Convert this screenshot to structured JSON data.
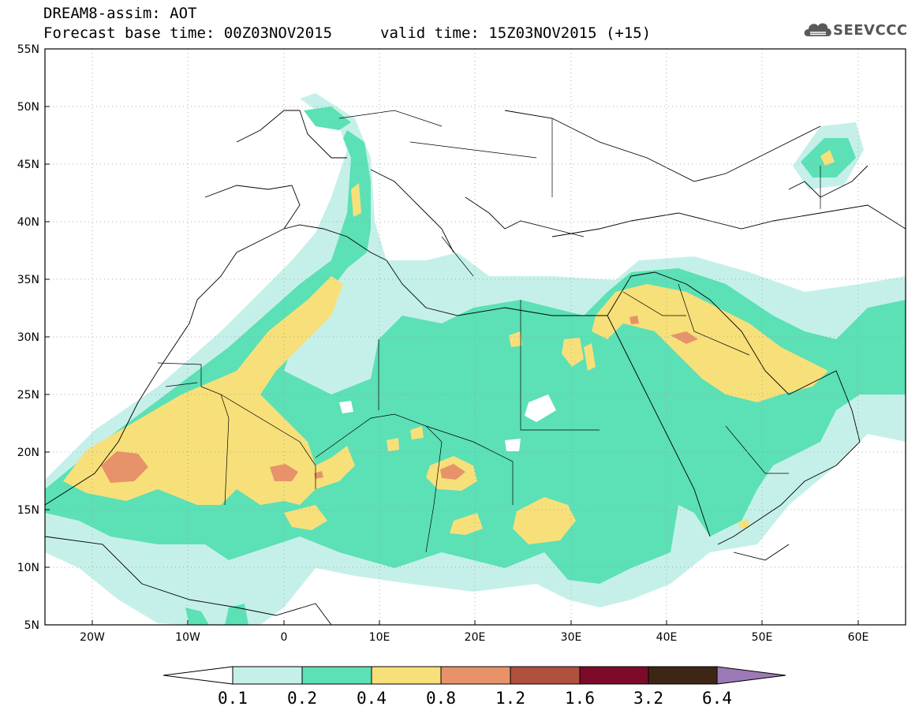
{
  "header": {
    "model": "DREAM8-assim: AOT",
    "base_time": "Forecast base time: 00Z03NOV2015",
    "valid_time": "valid time: 15Z03NOV2015 (+15)"
  },
  "logo": {
    "text": "SEEVCCC",
    "icon": "cloud-icon"
  },
  "map": {
    "lon_range": [
      -25,
      65
    ],
    "lat_range": [
      5,
      55
    ],
    "lat_ticks": [
      "5N",
      "10N",
      "15N",
      "20N",
      "25N",
      "30N",
      "35N",
      "40N",
      "45N",
      "50N",
      "55N"
    ],
    "lon_ticks": [
      "20W",
      "10W",
      "0",
      "10E",
      "20E",
      "30E",
      "40E",
      "50E",
      "60E"
    ]
  },
  "colorbar": {
    "labels": [
      "0.1",
      "0.2",
      "0.4",
      "0.8",
      "1.2",
      "1.6",
      "3.2",
      "6.4"
    ],
    "colors": [
      "#ffffff",
      "#c5f0e9",
      "#5ce0b6",
      "#f7e07a",
      "#e8926a",
      "#b0503f",
      "#7c0b2a",
      "#3d2616",
      "#9b7ab6"
    ]
  },
  "levels": {
    "c1": "#c5f0e9",
    "c2": "#5ce0b6",
    "c3": "#f7e07a",
    "c4": "#e8926a",
    "c5": "#b0503f"
  }
}
